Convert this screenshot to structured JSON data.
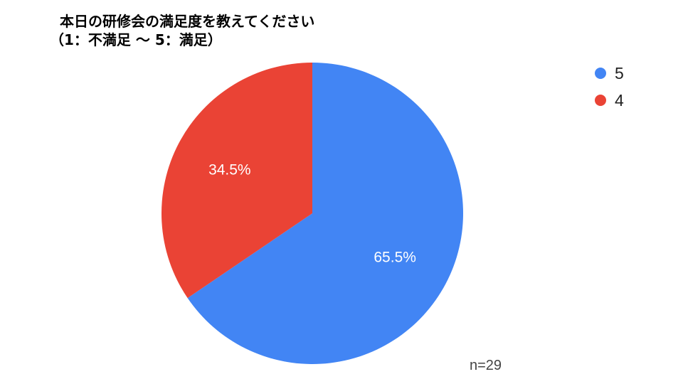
{
  "chart_data": {
    "type": "pie",
    "title": "本日の研修会の満足度を教えてください",
    "subtitle": "（1：不満足 〜 5：満足）",
    "slices": [
      {
        "label": "5",
        "value": 65.5,
        "display": "65.5%",
        "color": "#4285F4"
      },
      {
        "label": "4",
        "value": 34.5,
        "display": "34.5%",
        "color": "#EA4335"
      }
    ],
    "legend": {
      "position": "top-right",
      "entries": [
        "5",
        "4"
      ]
    },
    "note": "n=29"
  }
}
